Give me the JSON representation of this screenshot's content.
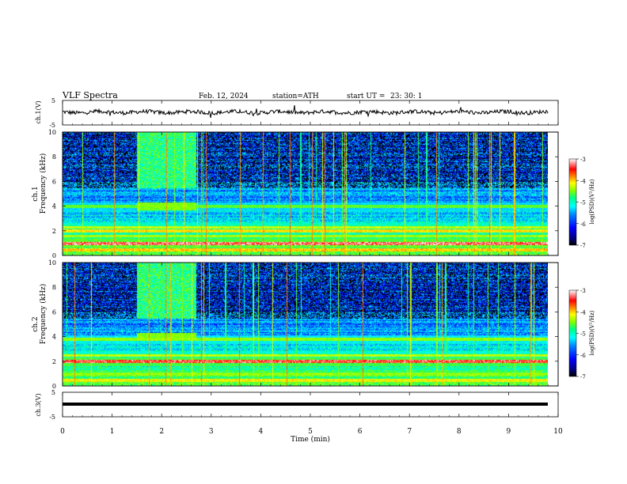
{
  "header": {
    "title": "VLF  Spectra",
    "date": "Feb. 12, 2024",
    "station": "station=ATH",
    "start_label": "start  UT  =",
    "start_time": "23: 30: 1"
  },
  "chart_data": [
    {
      "type": "line",
      "name": "ch1-waveform",
      "ylabel": "ch.1(V)",
      "ylim": [
        -5,
        5
      ],
      "yticks": [
        "5",
        "-5"
      ],
      "xlim": [
        0,
        10
      ],
      "baseline_v": 0.2,
      "trace_color": "#000000"
    },
    {
      "type": "heatmap",
      "name": "ch1-spectrogram",
      "ylabel_lines": [
        "ch.1",
        "Frequency (kHz)"
      ],
      "ylim": [
        0,
        10
      ],
      "yticks": [
        "0",
        "2",
        "4",
        "6",
        "8",
        "10"
      ],
      "xlim": [
        0,
        10
      ],
      "data_end_min": 9.8,
      "bands_khz": [
        {
          "f": 0.5,
          "level": 0.75
        },
        {
          "f": 1.0,
          "level": 0.98
        },
        {
          "f": 1.6,
          "level": 0.62
        },
        {
          "f": 2.0,
          "level": 0.72
        },
        {
          "f": 2.3,
          "level": 0.65
        },
        {
          "f": 4.0,
          "level": 0.55
        }
      ],
      "colorbar": {
        "label": "log(PSD)(V²/Hz)",
        "ticks": [
          "-3",
          "-4",
          "-5",
          "-6",
          "-7"
        ],
        "range": [
          -7,
          -3
        ]
      }
    },
    {
      "type": "heatmap",
      "name": "ch2-spectrogram",
      "ylabel_lines": [
        "ch.2",
        "Frequency (kHz)"
      ],
      "ylim": [
        0,
        10
      ],
      "yticks": [
        "0",
        "2",
        "4",
        "6",
        "8",
        "10"
      ],
      "xlim": [
        0,
        10
      ],
      "data_end_min": 9.8,
      "bands_khz": [
        {
          "f": 0.5,
          "level": 0.7
        },
        {
          "f": 1.0,
          "level": 0.6
        },
        {
          "f": 2.0,
          "level": 0.95
        },
        {
          "f": 2.5,
          "level": 0.65
        },
        {
          "f": 3.8,
          "level": 0.6
        }
      ],
      "colorbar": {
        "label": "log(PSD)(V²/Hz)",
        "ticks": [
          "-3",
          "-4",
          "-5",
          "-6",
          "-7"
        ],
        "range": [
          -7,
          -3
        ]
      }
    },
    {
      "type": "line",
      "name": "ch3-waveform",
      "ylabel": "ch.3(V)",
      "ylim": [
        -5,
        5
      ],
      "yticks": [
        "5",
        "-5"
      ],
      "xlim": [
        0,
        10
      ],
      "baseline_v": -0.2,
      "trace_color": "#000000"
    }
  ],
  "xaxis": {
    "label": "Time  (min)",
    "ticks": [
      "0",
      "1",
      "2",
      "3",
      "4",
      "5",
      "6",
      "7",
      "8",
      "9",
      "10"
    ]
  },
  "colors": {
    "colormap": [
      "#00007f",
      "#0000ff",
      "#0080ff",
      "#00ffff",
      "#00ff80",
      "#80ff00",
      "#ffff00",
      "#ff8000",
      "#ff0000",
      "#ffffff"
    ]
  }
}
